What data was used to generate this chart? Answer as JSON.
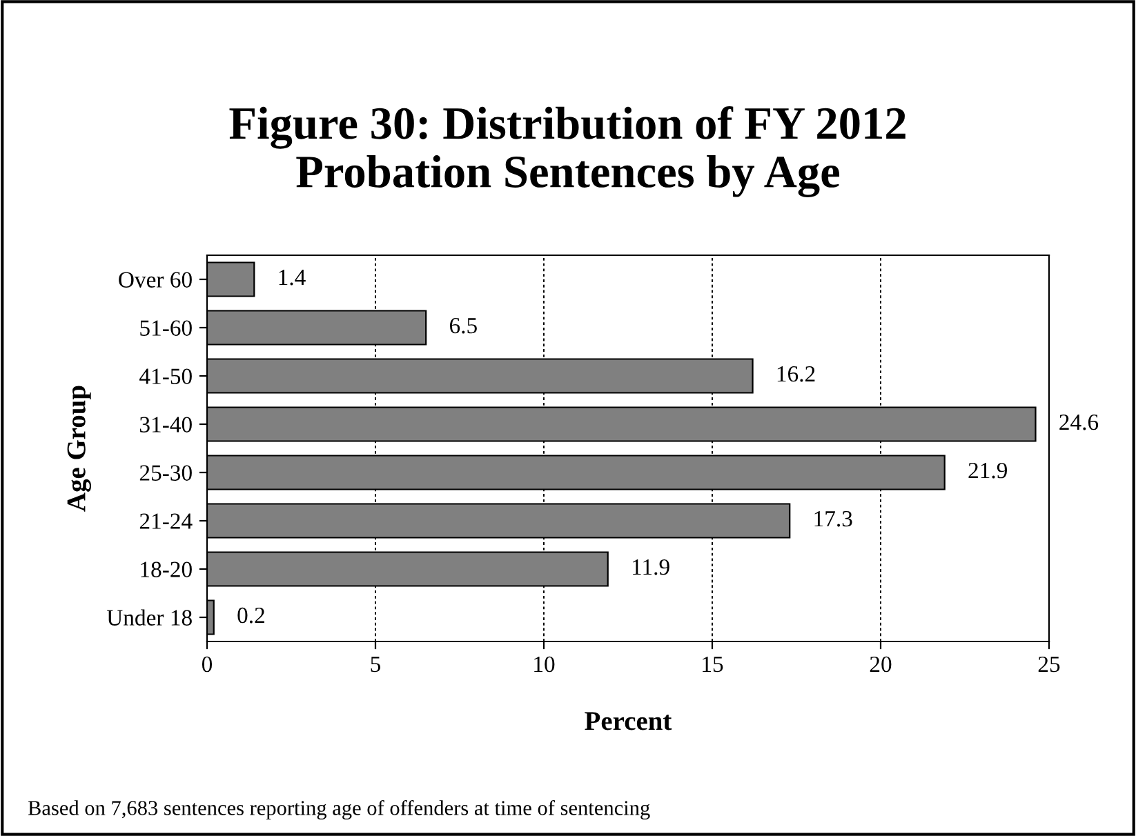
{
  "chart_data": {
    "type": "bar",
    "orientation": "horizontal",
    "title": "Figure 30: Distribution of FY 2012\nProbation Sentences by Age",
    "xlabel": "Percent",
    "ylabel": "Age Group",
    "categories": [
      "Over 60",
      "51-60",
      "41-50",
      "31-40",
      "25-30",
      "21-24",
      "18-20",
      "Under 18"
    ],
    "values": [
      1.4,
      6.5,
      16.2,
      24.6,
      21.9,
      17.3,
      11.9,
      0.2
    ],
    "color": "#808080",
    "data_labels": true,
    "xlim": [
      0,
      25
    ],
    "xticks": [
      0,
      5,
      10,
      15,
      20,
      25
    ],
    "grid": "x",
    "legend": false,
    "annotations": [
      "Based on 7,683 sentences reporting age of offenders at time of sentencing"
    ]
  }
}
